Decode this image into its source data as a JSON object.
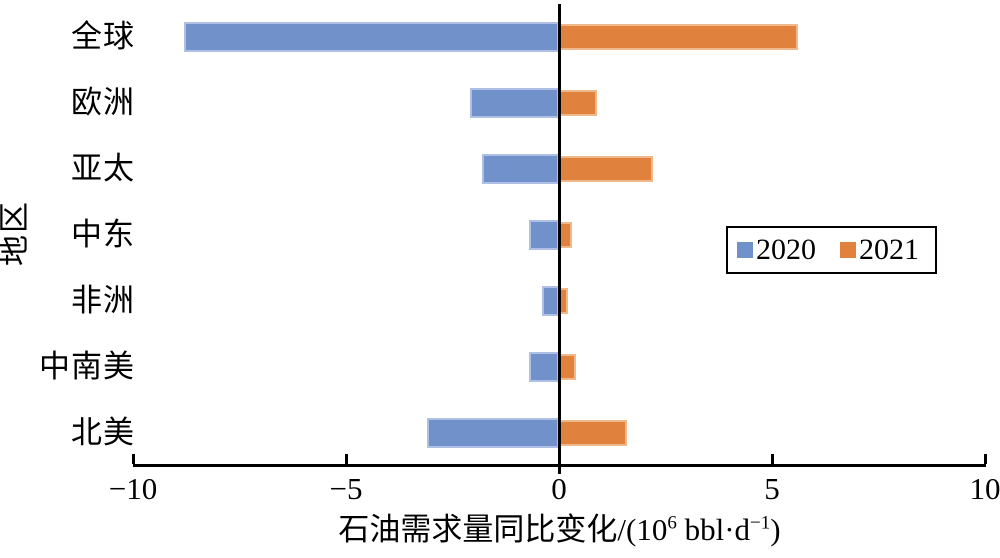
{
  "chart_data": {
    "type": "bar",
    "orientation": "horizontal",
    "title": "",
    "ylabel": "地区",
    "xlabel_text": "石油需求量同比变化/(10⁶ bbl·d⁻¹)",
    "xlabel_parts": {
      "pre": "石油需求量同比变化/(10",
      "sup1": "6",
      "mid": " bbl·d",
      "sup2": "−1",
      "post": ")"
    },
    "categories": [
      "全球",
      "欧洲",
      "亚太",
      "中东",
      "非洲",
      "中南美",
      "北美"
    ],
    "series": [
      {
        "name": "2020",
        "color": "#7191CB",
        "border_color": "#AFC0E4",
        "values": [
          -8.8,
          -2.1,
          -1.8,
          -0.7,
          -0.4,
          -0.7,
          -3.1
        ]
      },
      {
        "name": "2021",
        "color": "#E0813D",
        "border_color": "#EFB98C",
        "values": [
          5.6,
          0.9,
          2.2,
          0.3,
          0.2,
          0.4,
          1.6
        ]
      }
    ],
    "xlim": [
      -10,
      10
    ],
    "xticks": [
      -10,
      -5,
      0,
      5,
      10
    ],
    "xtick_labels": [
      "−10",
      "−5",
      "0",
      "5",
      "10"
    ],
    "grid": false,
    "legend": {
      "position": "middle-right",
      "entries": [
        "2020",
        "2021"
      ]
    },
    "axis_color": "#000000",
    "unit": "10^6 bbl/d"
  }
}
